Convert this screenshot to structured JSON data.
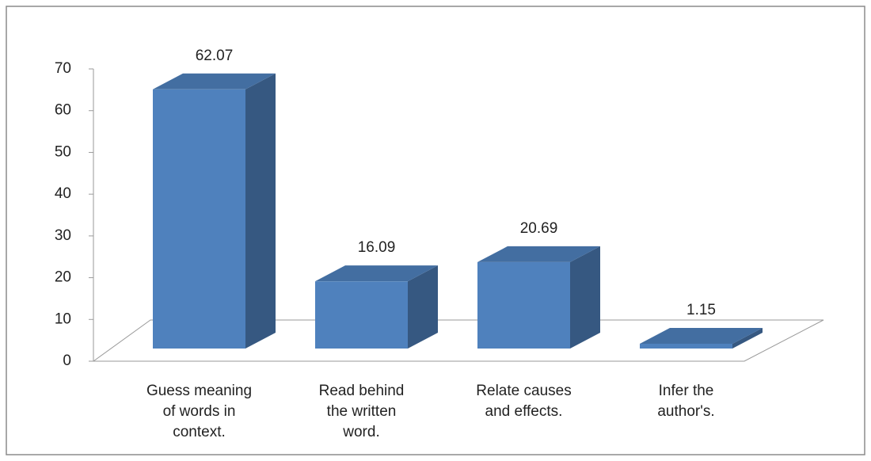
{
  "chart_data": {
    "type": "bar3d",
    "categories": [
      "Guess meaning of words in context.",
      "Read behind the written word.",
      "Relate causes and effects.",
      "Infer the author's."
    ],
    "values": [
      62.07,
      16.09,
      20.69,
      1.15
    ],
    "color": "#4f81bd",
    "ylim": [
      0,
      70
    ],
    "yticks": [
      0,
      10,
      20,
      30,
      40,
      50,
      60,
      70
    ]
  }
}
